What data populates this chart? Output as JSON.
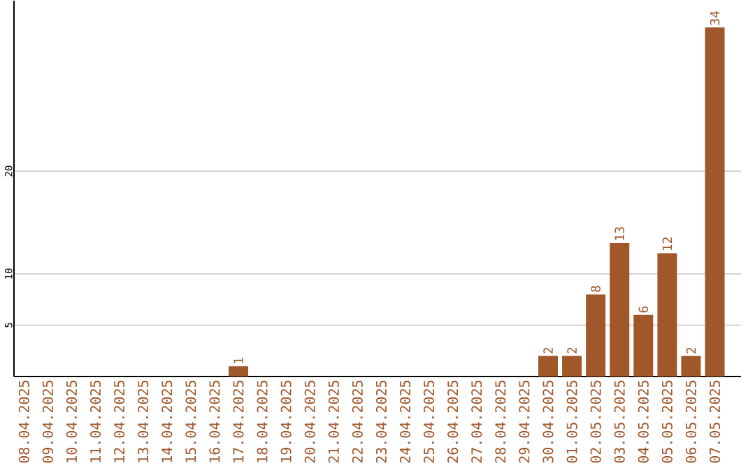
{
  "chart_data": {
    "type": "bar",
    "categories": [
      "08.04.2025",
      "09.04.2025",
      "10.04.2025",
      "11.04.2025",
      "12.04.2025",
      "13.04.2025",
      "14.04.2025",
      "15.04.2025",
      "16.04.2025",
      "17.04.2025",
      "18.04.2025",
      "19.04.2025",
      "20.04.2025",
      "21.04.2025",
      "22.04.2025",
      "23.04.2025",
      "24.04.2025",
      "25.04.2025",
      "26.04.2025",
      "27.04.2025",
      "28.04.2025",
      "29.04.2025",
      "30.04.2025",
      "01.05.2025",
      "02.05.2025",
      "03.05.2025",
      "04.05.2025",
      "05.05.2025",
      "06.05.2025",
      "07.05.2025"
    ],
    "values": [
      0,
      0,
      0,
      0,
      0,
      0,
      0,
      0,
      0,
      1,
      0,
      0,
      0,
      0,
      0,
      0,
      0,
      0,
      0,
      0,
      0,
      0,
      2,
      2,
      8,
      13,
      6,
      12,
      2,
      34
    ],
    "value_labels": [
      null,
      null,
      null,
      null,
      null,
      null,
      null,
      null,
      null,
      "1",
      null,
      null,
      null,
      null,
      null,
      null,
      null,
      null,
      null,
      null,
      null,
      null,
      "2",
      "2",
      "8",
      "13",
      "6",
      "12",
      "2",
      "34"
    ],
    "color": "#a0572a",
    "ylim": [
      0,
      36.6
    ],
    "yticks": [
      5,
      10,
      20
    ],
    "grid": "y"
  }
}
